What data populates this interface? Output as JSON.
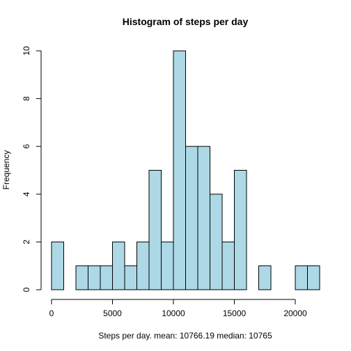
{
  "chart_data": {
    "type": "bar",
    "title": "Histogram of steps per day",
    "xlabel": "Steps per day. mean: 10766.19  median: 10765",
    "ylabel": "Frequency",
    "bin_edges": [
      0,
      1000,
      2000,
      3000,
      4000,
      5000,
      6000,
      7000,
      8000,
      9000,
      10000,
      11000,
      12000,
      13000,
      14000,
      15000,
      16000,
      17000,
      18000,
      19000,
      20000,
      21000,
      22000
    ],
    "values": [
      2,
      0,
      1,
      1,
      1,
      2,
      1,
      2,
      5,
      2,
      10,
      6,
      6,
      4,
      2,
      5,
      0,
      1,
      0,
      0,
      1,
      1
    ],
    "xlim": [
      0,
      22000
    ],
    "ylim": [
      0,
      10
    ],
    "x_ticks": [
      0,
      5000,
      10000,
      15000,
      20000
    ],
    "y_ticks": [
      0,
      2,
      4,
      6,
      8,
      10
    ],
    "grid": false,
    "bar_color": "#add8e6",
    "edge_color": "#000000"
  }
}
